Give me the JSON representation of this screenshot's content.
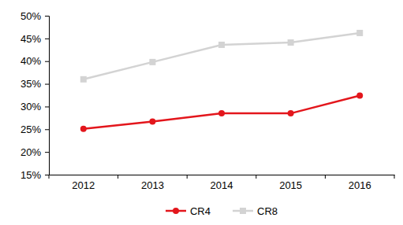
{
  "chart_data": {
    "type": "line",
    "categories": [
      "2012",
      "2013",
      "2014",
      "2015",
      "2016"
    ],
    "series": [
      {
        "name": "CR4",
        "color": "#e3161c",
        "marker": "circle",
        "values": [
          25.1,
          26.7,
          28.5,
          28.5,
          32.4
        ]
      },
      {
        "name": "CR8",
        "color": "#d3d3d3",
        "marker": "square",
        "values": [
          36.0,
          39.8,
          43.6,
          44.1,
          46.2
        ]
      }
    ],
    "ylim": [
      15,
      50
    ],
    "yticks": [
      {
        "value": 15,
        "label": "15%"
      },
      {
        "value": 20,
        "label": "20%"
      },
      {
        "value": 25,
        "label": "25%"
      },
      {
        "value": 30,
        "label": "30%"
      },
      {
        "value": 35,
        "label": "35%"
      },
      {
        "value": 40,
        "label": "40%"
      },
      {
        "value": 45,
        "label": "45%"
      },
      {
        "value": 50,
        "label": "50%"
      }
    ],
    "grid": false,
    "legend": "bottom"
  }
}
